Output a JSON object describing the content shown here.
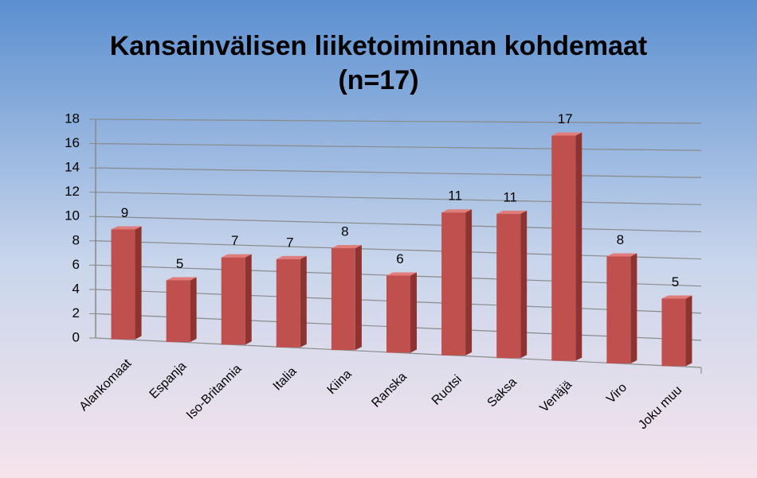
{
  "chart_data": {
    "type": "bar",
    "title": "Kansainvälisen liiketoiminnan kohdemaat",
    "subtitle": "(n=17)",
    "categories": [
      "Alankomaat",
      "Espanja",
      "Iso-Britannia",
      "Italia",
      "Kiina",
      "Ranska",
      "Ruotsi",
      "Saksa",
      "Venäjä",
      "Viro",
      "Joku muu"
    ],
    "values": [
      9,
      5,
      7,
      7,
      8,
      6,
      11,
      11,
      17,
      8,
      5
    ],
    "color": "#c0504d",
    "ylim": [
      0,
      18
    ],
    "yticks": [
      0,
      2,
      4,
      6,
      8,
      10,
      12,
      14,
      16,
      18
    ],
    "grid": true
  }
}
